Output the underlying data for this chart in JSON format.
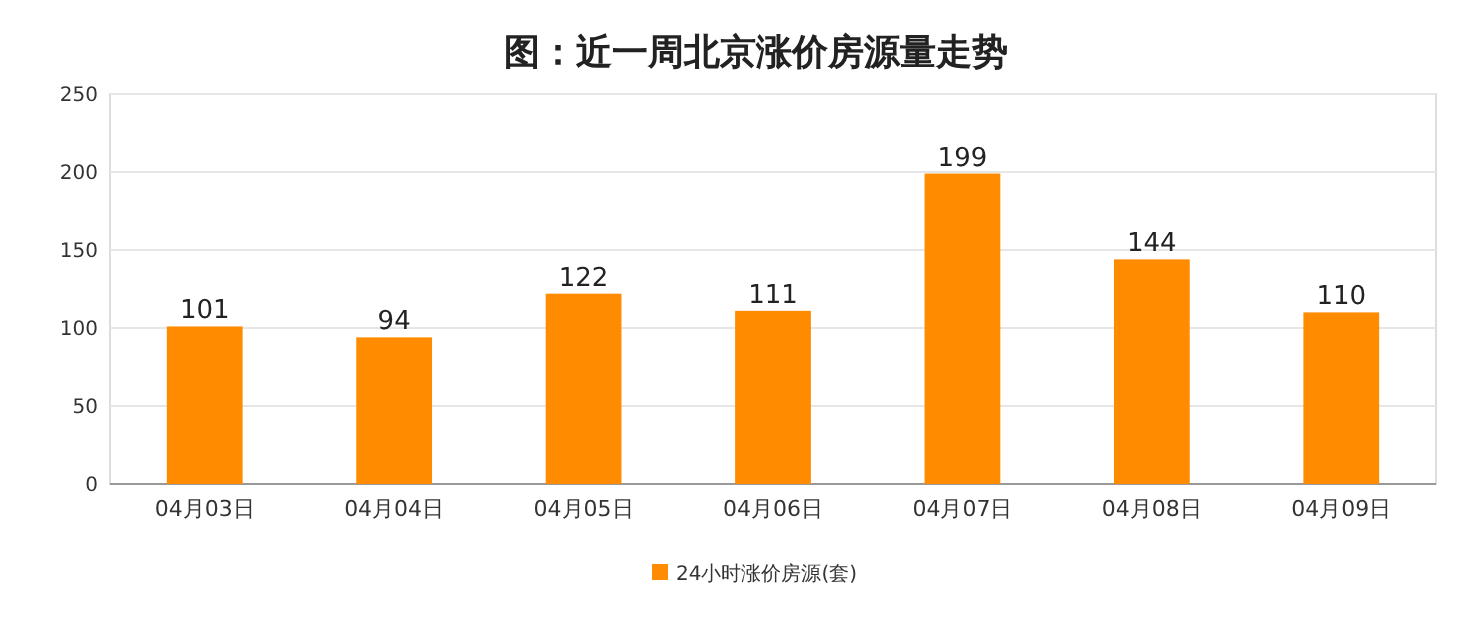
{
  "chart_data": {
    "type": "bar",
    "title": "图：近一周北京涨价房源量走势",
    "categories": [
      "04月03日",
      "04月04日",
      "04月05日",
      "04月06日",
      "04月07日",
      "04月08日",
      "04月09日"
    ],
    "series": [
      {
        "name": "24小时涨价房源(套)",
        "color": "#ff8c00",
        "values": [
          101,
          94,
          122,
          111,
          199,
          144,
          110
        ]
      }
    ],
    "ylim": [
      0,
      250
    ],
    "yticks": [
      0,
      50,
      100,
      150,
      200,
      250
    ],
    "grid": "y",
    "legend": "bottom",
    "data_labels": true
  }
}
